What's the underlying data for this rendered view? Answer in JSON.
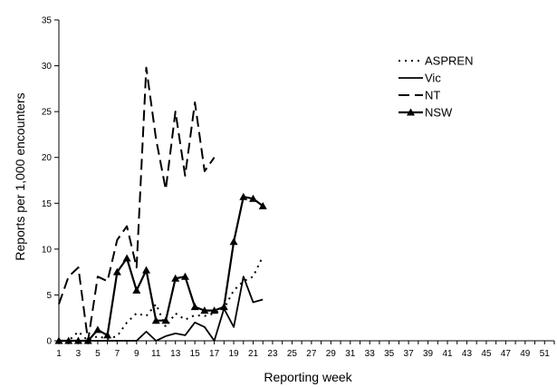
{
  "chart_data": {
    "type": "line",
    "xlabel": "Reporting week",
    "ylabel": "Reports per 1,000 encounters",
    "xlim": [
      1,
      52
    ],
    "ylim": [
      0,
      35
    ],
    "x_ticks": [
      1,
      3,
      5,
      7,
      9,
      11,
      13,
      15,
      17,
      19,
      21,
      23,
      25,
      27,
      29,
      31,
      33,
      35,
      37,
      39,
      41,
      43,
      45,
      47,
      49,
      51
    ],
    "y_ticks": [
      0,
      5,
      10,
      15,
      20,
      25,
      30,
      35
    ],
    "grid": false,
    "legend_position": "top-right",
    "series": [
      {
        "name": "ASPREN",
        "style": "dotted",
        "x": [
          1,
          2,
          3,
          4,
          5,
          6,
          7,
          8,
          9,
          10,
          11,
          12,
          13,
          14,
          15,
          16,
          17,
          18,
          19,
          20,
          21,
          22
        ],
        "values": [
          0,
          0,
          1,
          0,
          0.5,
          0.2,
          0.5,
          2,
          3,
          2.7,
          4,
          1.5,
          3,
          2.3,
          2.8,
          2.7,
          3,
          3.5,
          5.5,
          6.5,
          7,
          9.2
        ]
      },
      {
        "name": "Vic",
        "style": "solid",
        "x": [
          1,
          2,
          3,
          4,
          5,
          6,
          7,
          8,
          9,
          10,
          11,
          12,
          13,
          14,
          15,
          16,
          17,
          18,
          19,
          20,
          21,
          22
        ],
        "values": [
          0,
          0,
          0,
          0,
          0,
          0,
          0,
          0,
          0,
          1,
          0,
          0.5,
          0.8,
          0.6,
          2,
          1.5,
          0,
          3.5,
          1.5,
          7,
          4.2,
          4.5
        ]
      },
      {
        "name": "NT",
        "style": "dashed",
        "x": [
          1,
          2,
          3,
          4,
          5,
          6,
          7,
          8,
          9,
          10,
          11,
          12,
          13,
          14,
          15,
          16,
          17
        ],
        "values": [
          4,
          7,
          8,
          0,
          7,
          6.5,
          11,
          12.5,
          8,
          29.8,
          22,
          16.5,
          25,
          18,
          26,
          18.5,
          20
        ]
      },
      {
        "name": "NSW",
        "style": "solid-triangle",
        "x": [
          1,
          2,
          3,
          4,
          5,
          6,
          7,
          8,
          9,
          10,
          11,
          12,
          13,
          14,
          15,
          16,
          17,
          18,
          19,
          20,
          21,
          22
        ],
        "values": [
          0,
          0,
          0,
          0,
          1.2,
          0.6,
          7.5,
          9,
          5.5,
          7.7,
          2.2,
          2.2,
          6.8,
          7,
          3.7,
          3.3,
          3.3,
          3.7,
          10.8,
          15.7,
          15.5,
          14.7
        ]
      }
    ]
  }
}
